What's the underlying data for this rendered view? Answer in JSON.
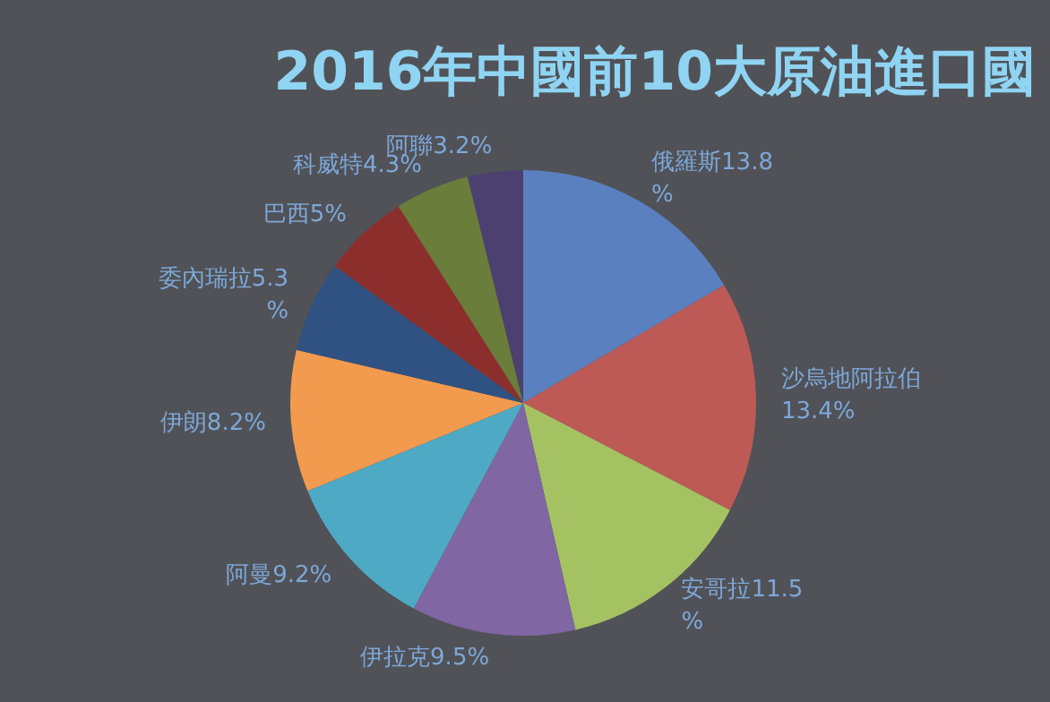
{
  "chart_data": {
    "type": "pie",
    "title": "2016年中國前10大原油進口國",
    "categories": [
      "俄羅斯",
      "沙烏地阿拉伯",
      "安哥拉",
      "伊拉克",
      "阿曼",
      "伊朗",
      "委內瑞拉",
      "巴西",
      "科威特",
      "阿聯"
    ],
    "values": [
      13.8,
      13.4,
      11.5,
      9.5,
      9.2,
      8.2,
      5.3,
      5,
      4.3,
      3.2
    ],
    "value_labels": [
      "13.8%",
      "13.4%",
      "11.5%",
      "9.5%",
      "9.2%",
      "8.2%",
      "5.3%",
      "5%",
      "4.3%",
      "3.2%"
    ],
    "colors": [
      "#5b80c0",
      "#bd5a55",
      "#a5c263",
      "#8066a3",
      "#4eaac4",
      "#f29a4e",
      "#2f5282",
      "#8c2f2c",
      "#6a7d3b",
      "#4c4070"
    ],
    "legend": false
  }
}
